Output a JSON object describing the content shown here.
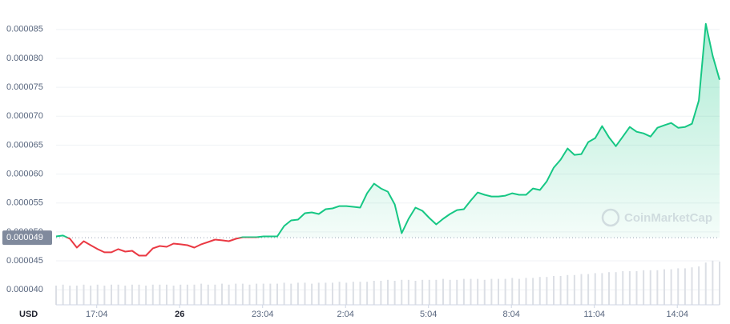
{
  "chart_data": {
    "type": "line",
    "currency": "USD",
    "watermark": "CoinMarketCap",
    "xlim": [
      15.6,
      39.6
    ],
    "xticks": [
      {
        "value": 17.07,
        "label": "17:04"
      },
      {
        "value": 20.07,
        "label": "26"
      },
      {
        "value": 23.07,
        "label": "23:04"
      },
      {
        "value": 26.07,
        "label": "2:04"
      },
      {
        "value": 29.07,
        "label": "5:04"
      },
      {
        "value": 32.07,
        "label": "8:04"
      },
      {
        "value": 35.07,
        "label": "11:04"
      },
      {
        "value": 38.07,
        "label": "14:04"
      }
    ],
    "ylim": [
      3.74e-05,
      8.94e-05
    ],
    "yticks": [
      {
        "value": 4e-05,
        "label": "0.000040"
      },
      {
        "value": 4.5e-05,
        "label": "0.000045"
      },
      {
        "value": 5e-05,
        "label": "0.000050"
      },
      {
        "value": 5.5e-05,
        "label": "0.000055"
      },
      {
        "value": 6e-05,
        "label": "0.000060"
      },
      {
        "value": 6.5e-05,
        "label": "0.000065"
      },
      {
        "value": 7e-05,
        "label": "0.000070"
      },
      {
        "value": 7.5e-05,
        "label": "0.000075"
      },
      {
        "value": 8e-05,
        "label": "0.000080"
      },
      {
        "value": 8.5e-05,
        "label": "0.000085"
      }
    ],
    "grid": true,
    "baseline": {
      "value": 4.9e-05,
      "label": "0.000049"
    },
    "x": [
      15.6,
      15.85,
      16.1,
      16.35,
      16.6,
      16.85,
      17.1,
      17.35,
      17.6,
      17.85,
      18.1,
      18.35,
      18.6,
      18.85,
      19.1,
      19.35,
      19.6,
      19.85,
      20.1,
      20.35,
      20.6,
      20.85,
      21.1,
      21.35,
      21.6,
      21.85,
      22.1,
      22.35,
      22.6,
      22.85,
      23.1,
      23.35,
      23.6,
      23.85,
      24.1,
      24.35,
      24.6,
      24.85,
      25.1,
      25.35,
      25.6,
      25.85,
      26.1,
      26.35,
      26.6,
      26.85,
      27.1,
      27.35,
      27.6,
      27.85,
      28.1,
      28.35,
      28.6,
      28.85,
      29.1,
      29.35,
      29.6,
      29.85,
      30.1,
      30.35,
      30.6,
      30.85,
      31.1,
      31.35,
      31.6,
      31.85,
      32.1,
      32.35,
      32.6,
      32.85,
      33.1,
      33.35,
      33.6,
      33.85,
      34.1,
      34.35,
      34.6,
      34.85,
      35.1,
      35.35,
      35.6,
      35.85,
      36.1,
      36.35,
      36.6,
      36.85,
      37.1,
      37.35,
      37.6,
      37.85,
      38.1,
      38.35,
      38.6,
      38.85,
      39.1,
      39.35,
      39.6
    ],
    "series": [
      {
        "name": "Price",
        "color": "#16c784",
        "color_down": "#ea3943",
        "values": [
          4.923e-05,
          4.937e-05,
          4.881e-05,
          4.729e-05,
          4.84e-05,
          4.771e-05,
          4.702e-05,
          4.647e-05,
          4.647e-05,
          4.702e-05,
          4.66e-05,
          4.674e-05,
          4.591e-05,
          4.591e-05,
          4.716e-05,
          4.757e-05,
          4.743e-05,
          4.798e-05,
          4.785e-05,
          4.771e-05,
          4.729e-05,
          4.785e-05,
          4.826e-05,
          4.867e-05,
          4.854e-05,
          4.84e-05,
          4.881e-05,
          4.909e-05,
          4.909e-05,
          4.909e-05,
          4.923e-05,
          4.923e-05,
          4.923e-05,
          5.102e-05,
          5.199e-05,
          5.213e-05,
          5.323e-05,
          5.337e-05,
          5.309e-05,
          5.392e-05,
          5.406e-05,
          5.447e-05,
          5.447e-05,
          5.434e-05,
          5.42e-05,
          5.668e-05,
          5.834e-05,
          5.751e-05,
          5.696e-05,
          5.475e-05,
          4.978e-05,
          5.227e-05,
          5.42e-05,
          5.365e-05,
          5.24e-05,
          5.13e-05,
          5.227e-05,
          5.309e-05,
          5.378e-05,
          5.392e-05,
          5.544e-05,
          5.682e-05,
          5.641e-05,
          5.613e-05,
          5.613e-05,
          5.627e-05,
          5.668e-05,
          5.641e-05,
          5.641e-05,
          5.751e-05,
          5.724e-05,
          5.876e-05,
          6.111e-05,
          6.249e-05,
          6.442e-05,
          6.332e-05,
          6.345e-05,
          6.553e-05,
          6.622e-05,
          6.829e-05,
          6.635e-05,
          6.483e-05,
          6.649e-05,
          6.815e-05,
          6.732e-05,
          6.704e-05,
          6.649e-05,
          6.801e-05,
          6.843e-05,
          6.884e-05,
          6.801e-05,
          6.815e-05,
          6.87e-05,
          7.271e-05,
          8.597e-05,
          8.044e-05,
          7.63e-05
        ]
      },
      {
        "name": "Volume",
        "color": "#dcdfe5",
        "values": [
          20,
          21,
          20,
          20,
          21,
          20,
          21,
          20,
          21,
          21,
          20,
          21,
          21,
          20,
          21,
          21,
          21,
          20,
          21,
          21,
          21,
          22,
          21,
          21,
          22,
          21,
          22,
          22,
          21,
          22,
          22,
          22,
          22,
          23,
          22,
          23,
          23,
          22,
          23,
          23,
          23,
          24,
          23,
          24,
          24,
          24,
          25,
          25,
          26,
          25,
          26,
          26,
          25,
          26,
          26,
          26,
          27,
          26,
          26,
          27,
          27,
          27,
          26,
          27,
          27,
          27,
          28,
          27,
          28,
          28,
          29,
          29,
          30,
          30,
          31,
          31,
          32,
          32,
          33,
          33,
          34,
          34,
          35,
          35,
          35,
          36,
          36,
          36,
          37,
          37,
          38,
          38,
          39,
          40,
          44,
          46,
          45
        ]
      }
    ]
  }
}
